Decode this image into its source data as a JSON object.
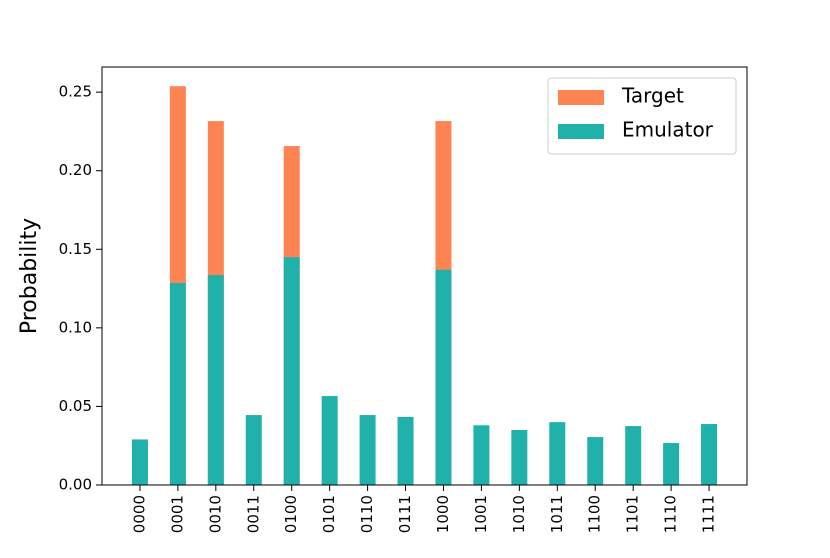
{
  "chart_data": {
    "type": "bar",
    "overlap": true,
    "ylabel": "Probability",
    "categories": [
      "0000",
      "0001",
      "0010",
      "0011",
      "0100",
      "0101",
      "0110",
      "0111",
      "1000",
      "1001",
      "1010",
      "1011",
      "1100",
      "1101",
      "1110",
      "1111"
    ],
    "series": [
      {
        "name": "Target",
        "color": "#ff8453",
        "values": [
          0,
          0.2538,
          0.2316,
          0,
          0.2157,
          0,
          0,
          0,
          0.2316,
          0,
          0,
          0,
          0,
          0,
          0,
          0
        ]
      },
      {
        "name": "Emulator",
        "color": "#20b2aa",
        "values": [
          0.029,
          0.1285,
          0.1336,
          0.0445,
          0.145,
          0.0566,
          0.0445,
          0.0433,
          0.137,
          0.038,
          0.035,
          0.04,
          0.0305,
          0.0375,
          0.0267,
          0.0388
        ]
      }
    ],
    "ylim": [
      0,
      0.266
    ],
    "yticks": [
      {
        "value": 0,
        "label": "0.00"
      },
      {
        "value": 0.05,
        "label": "0.05"
      },
      {
        "value": 0.1,
        "label": "0.10"
      },
      {
        "value": 0.15,
        "label": "0.15"
      },
      {
        "value": 0.2,
        "label": "0.20"
      },
      {
        "value": 0.25,
        "label": "0.25"
      }
    ],
    "legend": "upper right",
    "grid": false
  }
}
